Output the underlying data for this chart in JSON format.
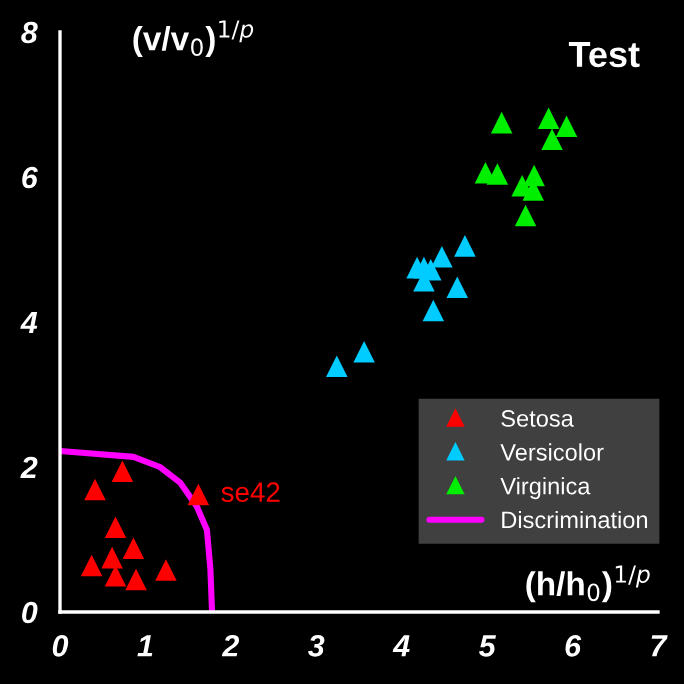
{
  "chart_data": {
    "type": "scatter",
    "title": "Test",
    "xlabel": "(h/h$_{0}$)$^{1/p}$",
    "ylabel": "(v/v$_{0}$)$^{1/p}$",
    "xlim": [
      0,
      7
    ],
    "ylim": [
      0,
      8
    ],
    "xticks": [
      0,
      1,
      2,
      3,
      4,
      5,
      6,
      7
    ],
    "yticks": [
      0,
      2,
      4,
      6,
      8
    ],
    "grid": false,
    "legend": "bottom right",
    "marker": "triangle",
    "annotations": [
      {
        "text": "se42",
        "x": 1.62,
        "y": 1.62
      }
    ],
    "series": [
      {
        "name": "Setosa",
        "color": "#ff0000",
        "x": [
          0.41,
          0.73,
          0.65,
          0.86,
          0.61,
          0.37,
          0.65,
          0.89,
          1.24,
          1.62
        ],
        "values": [
          1.69,
          1.94,
          1.17,
          0.88,
          0.75,
          0.64,
          0.5,
          0.45,
          0.58,
          1.62
        ]
      },
      {
        "name": "Versicolor",
        "color": "#00ccff",
        "x": [
          3.24,
          3.56,
          4.18,
          4.26,
          4.34,
          4.26,
          4.47,
          4.74,
          4.65,
          4.37
        ],
        "values": [
          3.39,
          3.59,
          4.75,
          4.75,
          4.72,
          4.57,
          4.9,
          5.05,
          4.48,
          4.16
        ]
      },
      {
        "name": "Virginica",
        "color": "#00ee00",
        "x": [
          5.17,
          4.98,
          5.12,
          5.41,
          5.55,
          5.54,
          5.45,
          5.72,
          5.76,
          5.93
        ],
        "values": [
          6.75,
          6.06,
          6.04,
          5.88,
          6.02,
          5.82,
          5.47,
          6.81,
          6.52,
          6.7
        ]
      },
      {
        "name": "Discrimination",
        "type": "line",
        "color": "#ff00ff",
        "marker": "none",
        "line_style": "solid",
        "x": [
          0,
          0.86,
          1.17,
          1.41,
          1.6,
          1.72,
          1.76,
          1.78
        ],
        "values": [
          2.22,
          2.14,
          2.0,
          1.78,
          1.46,
          1.13,
          0.6,
          0
        ]
      }
    ]
  }
}
